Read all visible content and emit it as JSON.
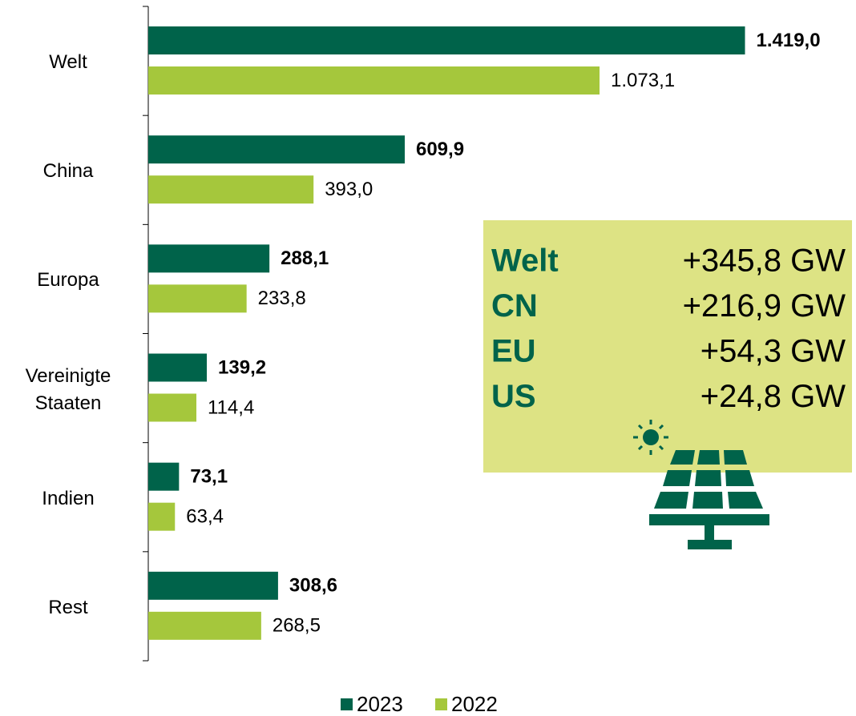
{
  "chart_data": {
    "type": "barh",
    "categories": [
      "Welt",
      "China",
      "Europa",
      "Vereinigte Staaten",
      "Indien",
      "Rest"
    ],
    "series": [
      {
        "name": "2023",
        "color": "#00634a",
        "values": [
          1419.0,
          609.9,
          288.1,
          139.2,
          73.1,
          308.6
        ],
        "value_labels": [
          "1.419,0",
          "609,9",
          "288,1",
          "139,2",
          "73,1",
          "308,6"
        ]
      },
      {
        "name": "2022",
        "color": "#a5c73c",
        "values": [
          1073.1,
          393.0,
          233.8,
          114.4,
          63.4,
          268.5
        ],
        "value_labels": [
          "1.073,1",
          "393,0",
          "233,8",
          "114,4",
          "63,4",
          "268,5"
        ]
      }
    ],
    "xlim": [
      0,
      1500
    ],
    "legend": "bottom",
    "annotation": {
      "rows": [
        {
          "label": "Welt",
          "value": "+345,8 GW"
        },
        {
          "label": "CN",
          "value": "+216,9 GW"
        },
        {
          "label": "EU",
          "value": "+54,3 GW"
        },
        {
          "label": "US",
          "value": "+24,8 GW"
        }
      ]
    }
  }
}
